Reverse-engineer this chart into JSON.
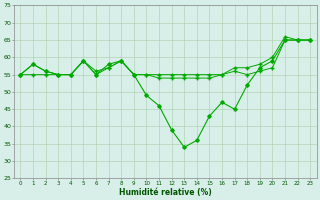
{
  "xlabel": "Humidité relative (%)",
  "ylabel": "",
  "xlim": [
    -0.5,
    23.5
  ],
  "ylim": [
    25,
    75
  ],
  "yticks": [
    25,
    30,
    35,
    40,
    45,
    50,
    55,
    60,
    65,
    70,
    75
  ],
  "xticks": [
    0,
    1,
    2,
    3,
    4,
    5,
    6,
    7,
    8,
    9,
    10,
    11,
    12,
    13,
    14,
    15,
    16,
    17,
    18,
    19,
    20,
    21,
    22,
    23
  ],
  "background_color": "#d8eee8",
  "grid_color": "#aaccaa",
  "line_color": "#00aa00",
  "curves": [
    [
      55,
      58,
      56,
      55,
      55,
      59,
      55,
      58,
      59,
      55,
      49,
      46,
      39,
      34,
      36,
      43,
      47,
      45,
      52,
      57,
      59,
      65,
      65,
      65
    ],
    [
      55,
      58,
      56,
      55,
      55,
      59,
      56,
      57,
      59,
      55,
      55,
      54,
      54,
      54,
      54,
      54,
      55,
      57,
      57,
      58,
      60,
      66,
      65,
      65
    ],
    [
      55,
      55,
      55,
      55,
      55,
      59,
      55,
      57,
      59,
      55,
      55,
      55,
      55,
      55,
      55,
      55,
      55,
      56,
      55,
      56,
      57,
      65,
      65,
      65
    ]
  ]
}
